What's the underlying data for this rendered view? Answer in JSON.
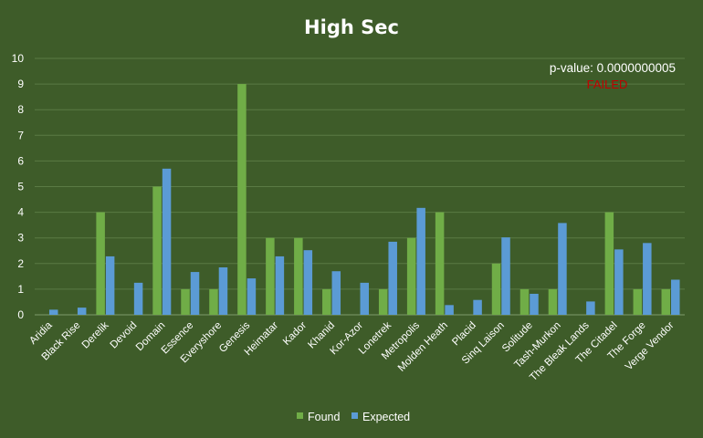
{
  "colors": {
    "background": "#3e5c29",
    "found": "#70ad47",
    "expected": "#5b9bd5",
    "gridline": "#5a7a44",
    "failed": "#c00000"
  },
  "annotation": {
    "pvalue": "p-value: 0.0000000005",
    "status": "FAILED"
  },
  "chart_data": {
    "type": "bar",
    "title": "High Sec",
    "xlabel": "",
    "ylabel": "",
    "ylim": [
      0,
      10
    ],
    "yticks": [
      0,
      1,
      2,
      3,
      4,
      5,
      6,
      7,
      8,
      9,
      10
    ],
    "grid": true,
    "legend_position": "bottom",
    "categories": [
      "Aridia",
      "Black Rise",
      "Derelik",
      "Devoid",
      "Domain",
      "Essence",
      "Everyshore",
      "Genesis",
      "Heimatar",
      "Kador",
      "Khanid",
      "Kor-Azor",
      "Lonetrek",
      "Metropolis",
      "Molden Heath",
      "Placid",
      "Sinq Laison",
      "Solitude",
      "Tash-Murkon",
      "The Bleak Lands",
      "The Citadel",
      "The Forge",
      "Verge Vendor"
    ],
    "series": [
      {
        "name": "Found",
        "values": [
          0,
          0,
          4,
          0,
          5,
          1,
          1,
          9,
          3,
          3,
          1,
          0,
          1,
          3,
          4,
          0,
          2,
          1,
          1,
          0,
          4,
          1,
          1
        ]
      },
      {
        "name": "Expected",
        "values": [
          0.2,
          0.28,
          2.28,
          1.25,
          5.7,
          1.67,
          1.85,
          1.42,
          2.28,
          2.52,
          1.7,
          1.25,
          2.85,
          4.17,
          0.38,
          0.58,
          3.02,
          0.82,
          3.58,
          0.52,
          2.55,
          2.8,
          1.37
        ]
      }
    ]
  }
}
